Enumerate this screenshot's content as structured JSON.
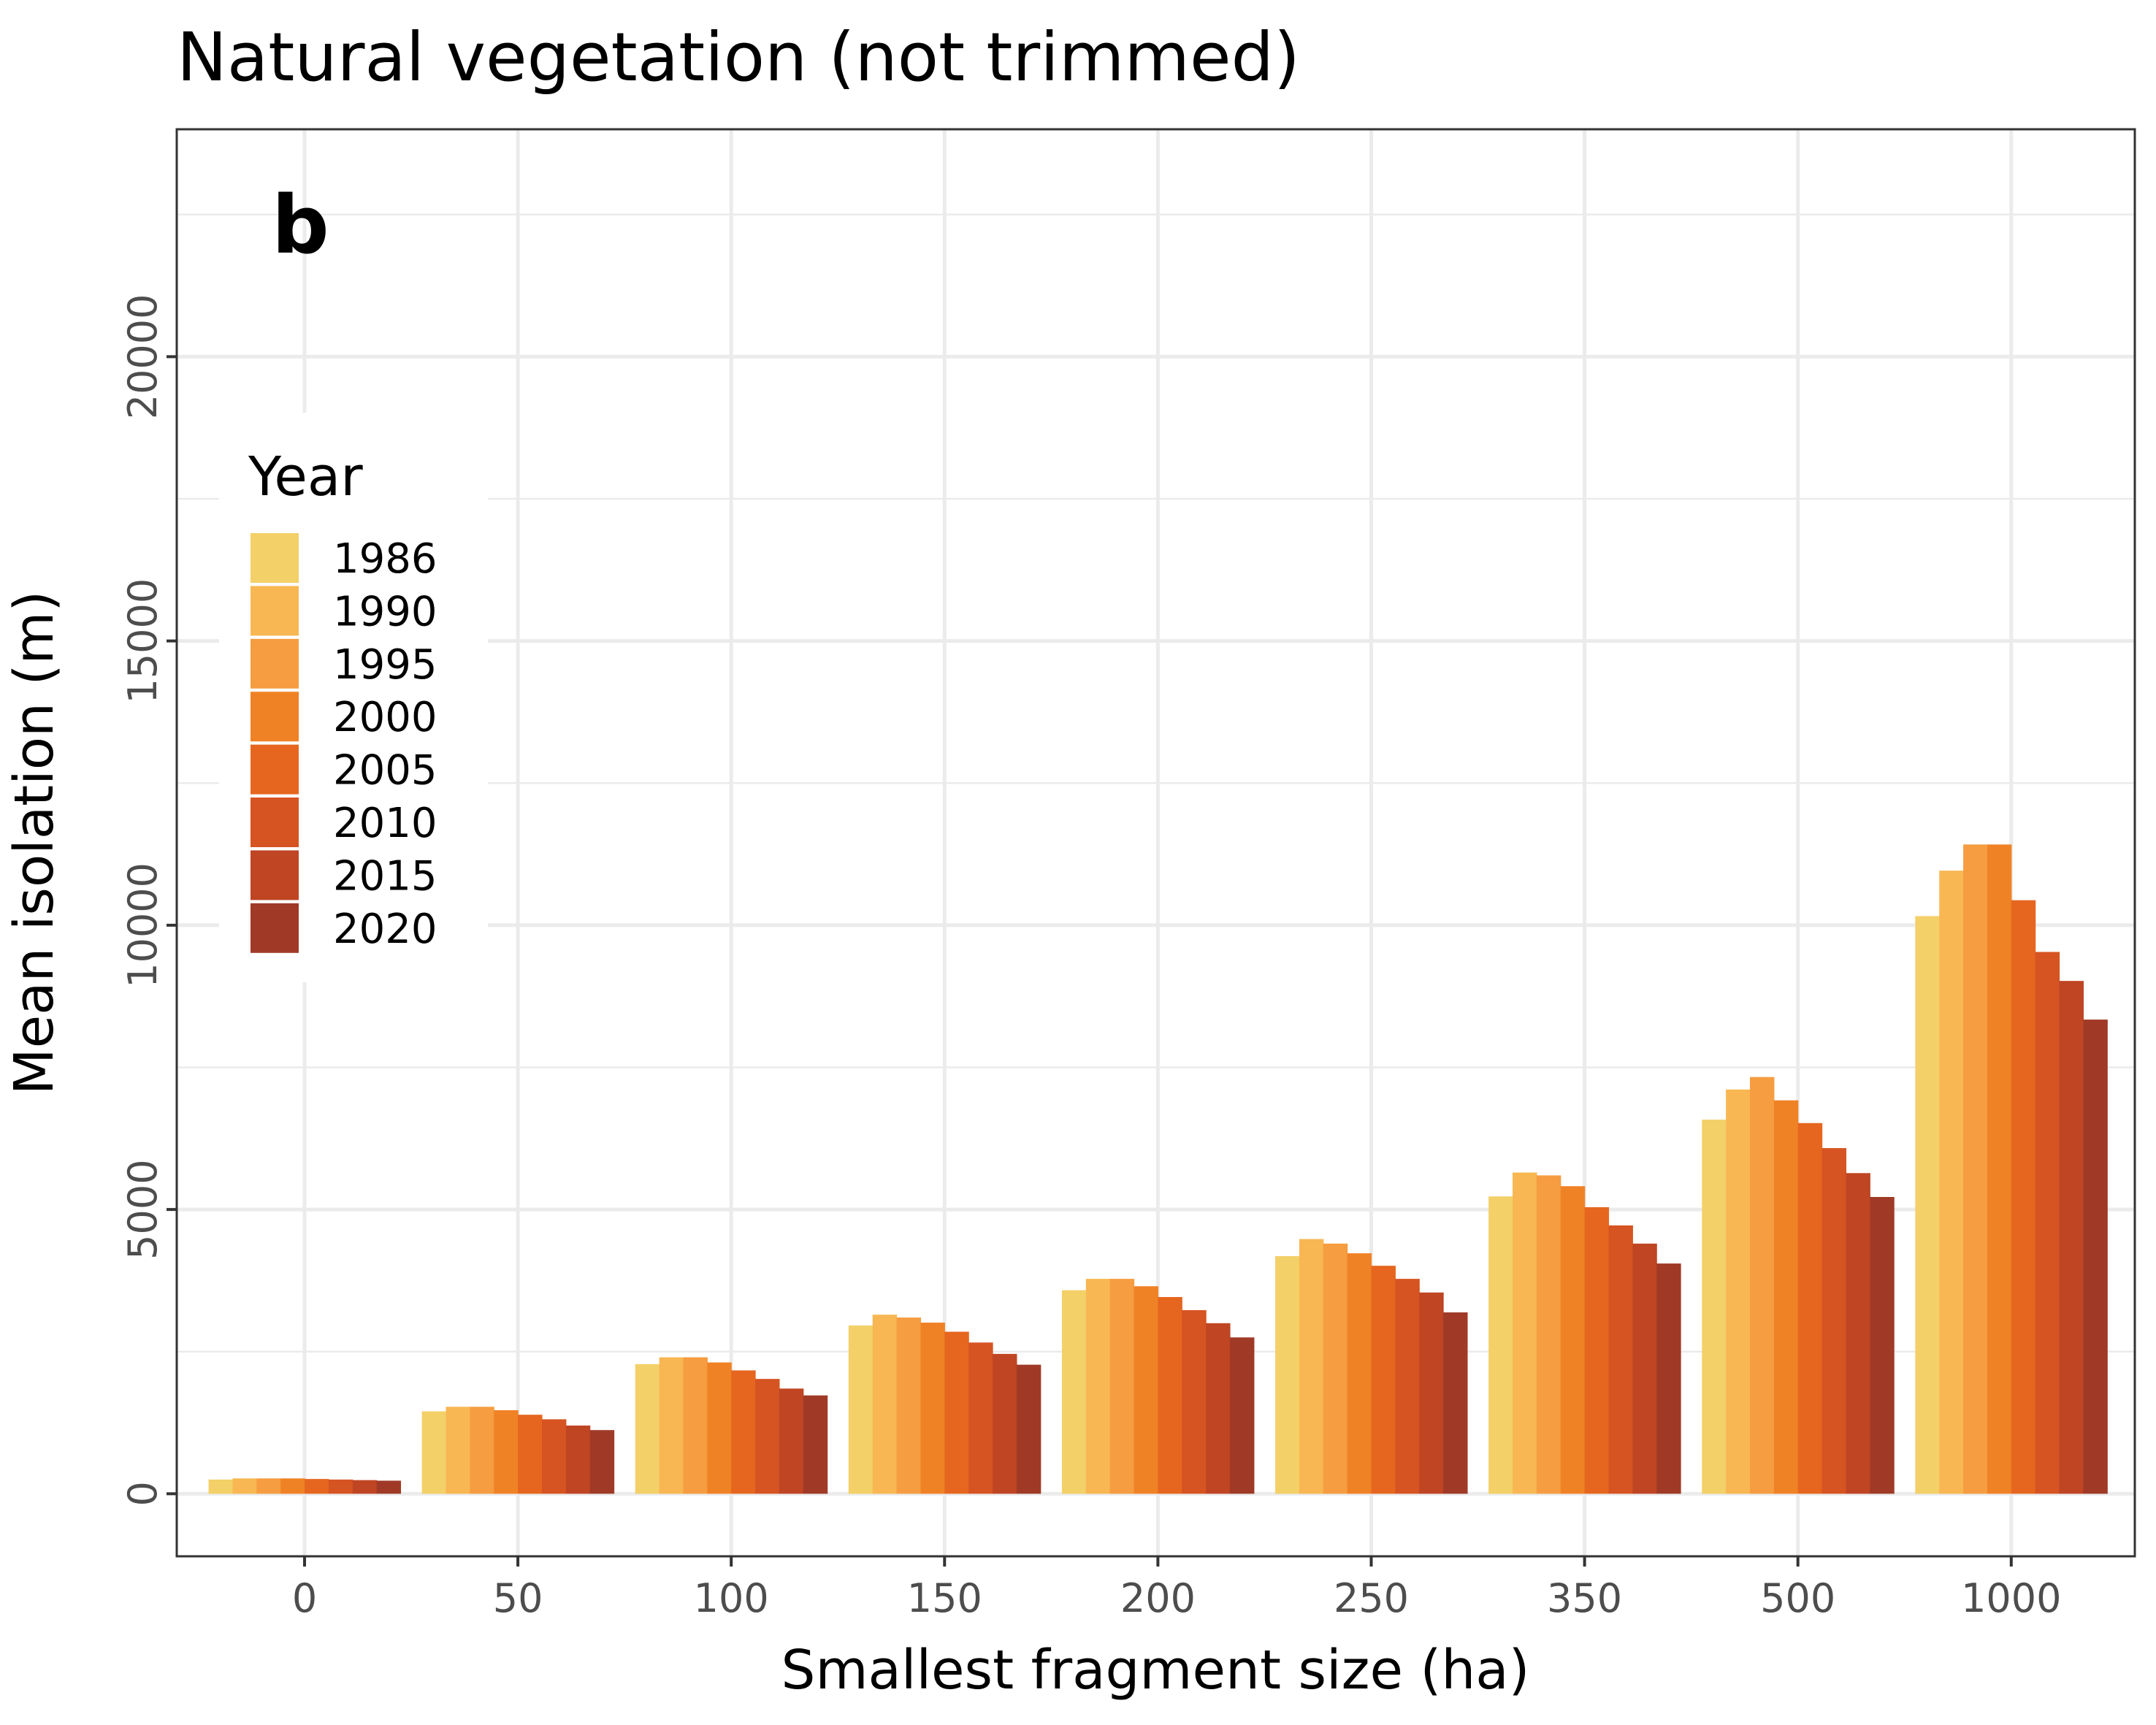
{
  "chart_data": {
    "type": "bar",
    "title": "Natural vegetation (not trimmed)",
    "panel_label": "b",
    "xlabel": "Smallest fragment size (ha)",
    "ylabel": "Mean isolation (m)",
    "ylim": [
      -1100,
      24000
    ],
    "yticks": [
      "0",
      "5000",
      "10000",
      "15000",
      "20000"
    ],
    "grid": true,
    "legend_position": "left",
    "legend_title": "Year",
    "categories": [
      "0",
      "50",
      "100",
      "150",
      "200",
      "250",
      "350",
      "500",
      "1000"
    ],
    "series": [
      {
        "name": "1986",
        "color": "#F3D068",
        "values": [
          250,
          1450,
          2280,
          2960,
          3580,
          4180,
          5230,
          6580,
          10160
        ]
      },
      {
        "name": "1990",
        "color": "#F8B752",
        "values": [
          270,
          1530,
          2400,
          3150,
          3780,
          4480,
          5650,
          7110,
          10960
        ]
      },
      {
        "name": "1995",
        "color": "#F59D40",
        "values": [
          270,
          1530,
          2400,
          3100,
          3780,
          4400,
          5600,
          7330,
          11420
        ]
      },
      {
        "name": "2000",
        "color": "#F08226",
        "values": [
          270,
          1470,
          2310,
          3010,
          3650,
          4230,
          5410,
          6920,
          11420
        ]
      },
      {
        "name": "2005",
        "color": "#E6661F",
        "values": [
          260,
          1390,
          2170,
          2850,
          3460,
          4010,
          5040,
          6520,
          10440
        ]
      },
      {
        "name": "2010",
        "color": "#D65422",
        "values": [
          250,
          1310,
          2020,
          2660,
          3230,
          3780,
          4720,
          6080,
          9530
        ]
      },
      {
        "name": "2015",
        "color": "#BF4523",
        "values": [
          240,
          1200,
          1850,
          2460,
          3000,
          3540,
          4400,
          5640,
          9020
        ]
      },
      {
        "name": "2020",
        "color": "#A03A26",
        "values": [
          230,
          1120,
          1730,
          2270,
          2750,
          3190,
          4050,
          5220,
          8340
        ]
      }
    ]
  }
}
